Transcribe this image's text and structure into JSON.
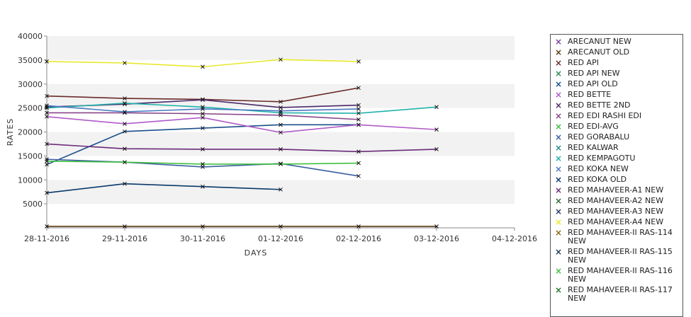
{
  "chart_data": {
    "type": "line",
    "xlabel": "DAYS",
    "ylabel": "RATES",
    "x": [
      "28-11-2016",
      "29-11-2016",
      "30-11-2016",
      "01-12-2016",
      "02-12-2016",
      "03-12-2016",
      "04-12-2016"
    ],
    "ylim": [
      0,
      40000
    ],
    "yticks": [
      5000,
      10000,
      15000,
      20000,
      25000,
      30000,
      35000,
      40000
    ],
    "grid": "alternating horizontal bands",
    "legend_position": "right",
    "series": [
      {
        "name": "ARECANUT NEW",
        "color": "#7b3fa0",
        "values": [
          null,
          null,
          null,
          null,
          null,
          null,
          null
        ]
      },
      {
        "name": "ARECANUT OLD",
        "color": "#5a3a10",
        "values": [
          300,
          300,
          300,
          300,
          300,
          300,
          null
        ]
      },
      {
        "name": "RED API",
        "color": "#6b2a2a",
        "values": [
          27500,
          27000,
          26800,
          26300,
          29200,
          null,
          null
        ]
      },
      {
        "name": "RED API NEW",
        "color": "#2e8b57",
        "values": [
          null,
          null,
          null,
          null,
          null,
          null,
          null
        ]
      },
      {
        "name": "RED API OLD",
        "color": "#1a4f8a",
        "values": [
          13200,
          20100,
          20800,
          21500,
          21500,
          null,
          null
        ]
      },
      {
        "name": "RED BETTE",
        "color": "#b05ac8",
        "values": [
          23200,
          21700,
          23000,
          19900,
          21500,
          20500,
          null
        ]
      },
      {
        "name": "RED BETTE 2ND",
        "color": "#4b2a6b",
        "values": [
          25200,
          25800,
          26700,
          25100,
          25600,
          null,
          null
        ]
      },
      {
        "name": "RED EDI RASHI EDI",
        "color": "#884488",
        "values": [
          24000,
          24000,
          23800,
          23500,
          22600,
          null,
          null
        ]
      },
      {
        "name": "RED EDI-AVG",
        "color": "#3fbf3f",
        "values": [
          null,
          null,
          null,
          null,
          null,
          null,
          null
        ]
      },
      {
        "name": "RED GORABALU",
        "color": "#3a5fa0",
        "values": [
          14300,
          13700,
          12700,
          13400,
          10800,
          null,
          null
        ]
      },
      {
        "name": "RED KALWAR",
        "color": "#2a8a8a",
        "values": [
          null,
          null,
          null,
          null,
          null,
          null,
          null
        ]
      },
      {
        "name": "RED KEMPAGOTU",
        "color": "#20b2aa",
        "values": [
          25000,
          26000,
          25200,
          24000,
          23900,
          25200,
          null
        ]
      },
      {
        "name": "RED KOKA NEW",
        "color": "#4a78c0",
        "values": [
          25500,
          24200,
          24800,
          24400,
          24800,
          null,
          null
        ]
      },
      {
        "name": "RED KOKA OLD",
        "color": "#0a3a6a",
        "values": [
          7300,
          9200,
          8600,
          8000,
          null,
          null,
          null
        ]
      },
      {
        "name": "RED MAHAVEER-A1 NEW",
        "color": "#6a2a7a",
        "values": [
          17500,
          16500,
          16400,
          16400,
          15900,
          16400,
          null
        ]
      },
      {
        "name": "RED MAHAVEER-A2 NEW",
        "color": "#2a6a3a",
        "values": [
          null,
          null,
          null,
          null,
          null,
          null,
          null
        ]
      },
      {
        "name": "RED MAHAVEER-A3 NEW",
        "color": "#2a3a6a",
        "values": [
          null,
          null,
          null,
          null,
          null,
          null,
          null
        ]
      },
      {
        "name": "RED MAHAVEER-A4 NEW",
        "color": "#e8e830",
        "values": [
          34700,
          34400,
          33600,
          35100,
          34700,
          null,
          null
        ]
      },
      {
        "name": "RED MAHAVEER-II RAS-114 NEW",
        "color": "#8a6a10",
        "values": [
          null,
          null,
          null,
          null,
          null,
          null,
          null
        ]
      },
      {
        "name": "RED MAHAVEER-II RAS-115 NEW",
        "color": "#1a3a5a",
        "values": [
          null,
          null,
          null,
          null,
          null,
          null,
          null
        ]
      },
      {
        "name": "RED MAHAVEER-II RAS-116 NEW",
        "color": "#40c040",
        "values": [
          13900,
          13700,
          13300,
          13300,
          13500,
          null,
          null
        ]
      },
      {
        "name": "RED MAHAVEER-II RAS-117 NEW",
        "color": "#2a7a2a",
        "values": [
          null,
          null,
          null,
          null,
          null,
          null,
          null
        ]
      }
    ]
  }
}
